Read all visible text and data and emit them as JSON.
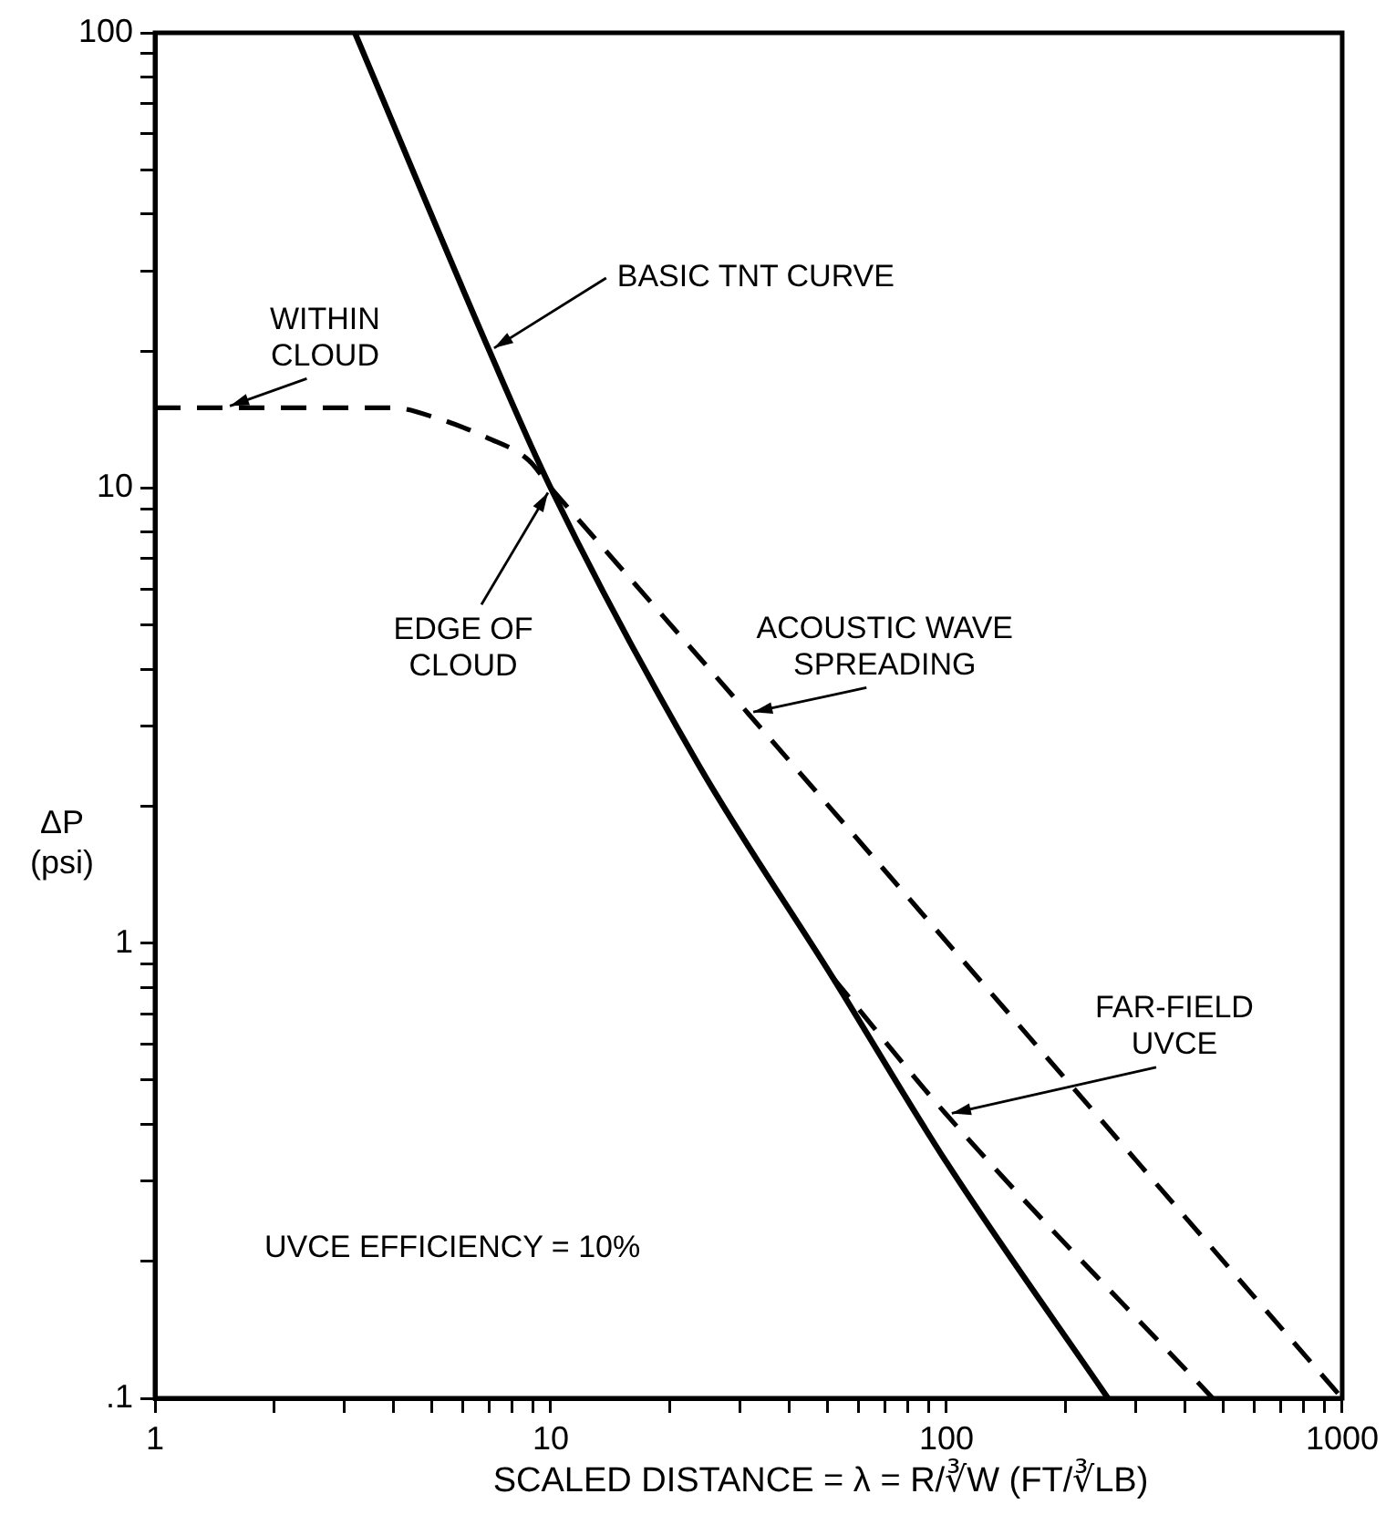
{
  "chart_data": {
    "type": "line",
    "xlabel": "SCALED DISTANCE = λ = R/∛W (FT/∛LB)",
    "ylabel": "ΔP (psi)",
    "log": "xy",
    "grid": false,
    "legend": false,
    "marker": "none",
    "xlim": [
      1,
      1000
    ],
    "xticks": [
      1,
      {
        "value": 2,
        "label": null
      },
      {
        "value": 3,
        "label": null
      },
      {
        "value": 4,
        "label": null
      },
      {
        "value": 5,
        "label": null
      },
      {
        "value": 6,
        "label": null
      },
      {
        "value": 7,
        "label": null
      },
      {
        "value": 8,
        "label": null
      },
      {
        "value": 9,
        "label": null
      },
      10,
      {
        "value": 20,
        "label": null
      },
      {
        "value": 30,
        "label": null
      },
      {
        "value": 40,
        "label": null
      },
      {
        "value": 50,
        "label": null
      },
      {
        "value": 60,
        "label": null
      },
      {
        "value": 70,
        "label": null
      },
      {
        "value": 80,
        "label": null
      },
      {
        "value": 90,
        "label": null
      },
      100,
      {
        "value": 200,
        "label": null
      },
      {
        "value": 300,
        "label": null
      },
      {
        "value": 400,
        "label": null
      },
      {
        "value": 500,
        "label": null
      },
      {
        "value": 600,
        "label": null
      },
      {
        "value": 700,
        "label": null
      },
      {
        "value": 800,
        "label": null
      },
      {
        "value": 900,
        "label": null
      },
      1000
    ],
    "ylim": [
      0.1,
      100
    ],
    "yticks": [
      {
        "value": 0.1,
        "label": ".1"
      },
      {
        "value": 0.2,
        "label": null
      },
      {
        "value": 0.3,
        "label": null
      },
      {
        "value": 0.4,
        "label": null
      },
      {
        "value": 0.5,
        "label": null
      },
      {
        "value": 0.6,
        "label": null
      },
      {
        "value": 0.7,
        "label": null
      },
      {
        "value": 0.8,
        "label": null
      },
      {
        "value": 0.9,
        "label": null
      },
      1,
      {
        "value": 2,
        "label": null
      },
      {
        "value": 3,
        "label": null
      },
      {
        "value": 4,
        "label": null
      },
      {
        "value": 5,
        "label": null
      },
      {
        "value": 6,
        "label": null
      },
      {
        "value": 7,
        "label": null
      },
      {
        "value": 8,
        "label": null
      },
      {
        "value": 9,
        "label": null
      },
      10,
      {
        "value": 20,
        "label": null
      },
      {
        "value": 30,
        "label": null
      },
      {
        "value": 40,
        "label": null
      },
      {
        "value": 50,
        "label": null
      },
      {
        "value": 60,
        "label": null
      },
      {
        "value": 70,
        "label": null
      },
      {
        "value": 80,
        "label": null
      },
      {
        "value": 90,
        "label": null
      },
      100
    ],
    "series": [
      {
        "color": "#000000",
        "line_style": "solid",
        "x": [
          3.2,
          7,
          10,
          23.6,
          51.6,
          100,
          256
        ],
        "values": [
          100,
          20,
          10,
          2.47,
          0.84,
          0.33,
          0.1
        ]
      },
      {
        "color": "#000000",
        "line_style": "dashed",
        "x": [
          1,
          2,
          4,
          5.2,
          6.9,
          8.8,
          10
        ],
        "values": [
          15,
          15,
          15,
          14.2,
          12.9,
          11.5,
          10
        ]
      },
      {
        "color": "#000000",
        "line_style": "dashed",
        "x": [
          10,
          31.5,
          1000
        ],
        "values": [
          10,
          3.2,
          0.1
        ]
      },
      {
        "color": "#000000",
        "line_style": "dashed",
        "x": [
          51.6,
          100,
          471
        ],
        "values": [
          0.84,
          0.42,
          0.1
        ]
      }
    ],
    "annotations": [
      {
        "text": "BASIC TNT CURVE",
        "x": 7,
        "y": 20
      },
      {
        "text": "WITHIN CLOUD",
        "x": 1.5,
        "y": 15
      },
      {
        "text": "EDGE OF CLOUD",
        "x": 10,
        "y": 10
      },
      {
        "text": "ACOUSTIC WAVE SPREADING",
        "x": 31.5,
        "y": 3.2
      },
      {
        "text": "FAR-FIELD UVCE",
        "x": 100,
        "y": 0.42
      },
      "UVCE EFFICIENCY = 10%"
    ]
  }
}
